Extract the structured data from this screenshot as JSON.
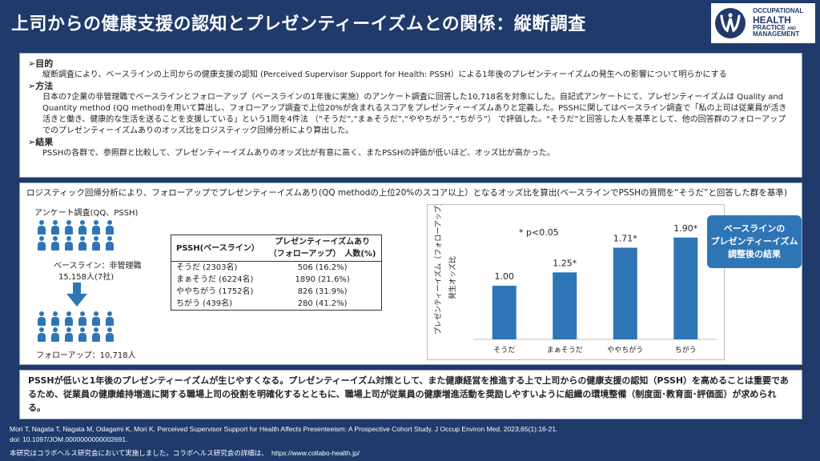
{
  "header": {
    "title": "上司からの健康支援の認知とプレゼンティーイズムとの関係：縦断調査",
    "logo_line1": "OCCUPATIONAL",
    "logo_line2": "HEALTH",
    "logo_line3": "PRACTICE",
    "logo_line4": "MANAGEMENT",
    "logo_and": "AND"
  },
  "summary": {
    "purpose_head": "➢目的",
    "purpose_body": "縦断調査により、ベースラインの上司からの健康支援の認知 (Perceived Supervisor Support for Health: PSSH）による1年後のプレゼンティーイズムの発生への影響について明らかにする",
    "method_head": "➢方法",
    "method_body": "日本の7企業の非管理職でベースラインとフォローアップ（ベースラインの1年後に実施）のアンケート調査に回答した10,718名を対象にした。自記式アンケートにて、プレゼンティーイズムは Quality and Quantity method (QQ method)を用いて算出し、フォローアップ調査で上位20%が含まれるスコアをプレゼンティーイズムありと定義した。PSSHに関してはベースライン調査で「私の上司は従業員が活き活きと働き、健康的な生活を送ることを支援している」という1問を4件法 （“そうだ”,“まぁそうだ”,“ややちがう”,“ちがう”） で評価した。“そうだ”と回答した人を基準として、他の回答群のフォローアップでのプレゼンティーイズムありのオッズ比をロジスティック回帰分析により算出した。",
    "result_head": "➢結果",
    "result_body": "PSSHの各群で、参照群と比較して、プレゼンティーイズムありのオッズ比が有意に高く、またPSSHの評価が低いほど、オッズ比が高かった。"
  },
  "analysis": {
    "title": "ロジスティック回帰分析により、フォローアップでプレゼンティーイズムあり(QQ methodの上位20%のスコア以上）となるオッズ比を算出(ベースラインでPSSHの質問を“そうだ”と回答した群を基準)",
    "survey_label": "アンケート調査(QQ、PSSH)",
    "baseline_label_1": "ベースライン：非管理職",
    "baseline_label_2": "15,158人(7社)",
    "followup_label": "フォローアップ：10,718人",
    "table": {
      "header_left": "PSSH(ベースライン）",
      "header_right_1": "プレゼンティーイズムあり",
      "header_right_2": "（フォローアップ）　人数(%)",
      "rows": [
        {
          "label": "そうだ (2303名)",
          "value": "506 (16.2%)"
        },
        {
          "label": "まぁそうだ (6224名)",
          "value": "1890 (21.6%)"
        },
        {
          "label": "ややちがう (1752名)",
          "value": "826 (31.9%)"
        },
        {
          "label": "ちがう (439名)",
          "value": "280 (41.2%)"
        }
      ]
    },
    "callout": [
      "ベースラインの",
      "プレゼンティーイズム",
      "調整後の結果"
    ]
  },
  "chart_data": {
    "type": "bar",
    "categories": [
      "そうだ",
      "まぁそうだ",
      "ややちがう",
      "ちがう"
    ],
    "values": [
      1.0,
      1.25,
      1.71,
      1.9
    ],
    "value_labels": [
      "1.00",
      "1.25*",
      "1.71*",
      "1.90*"
    ],
    "ylabel_1": "プレゼンティーイズム（フォローアップ）",
    "ylabel_2": "発生オッズ比",
    "annotation": "* p<0.05",
    "ylim": [
      0,
      2.3
    ],
    "bar_color": "#2e75b6",
    "grid": false
  },
  "conclusion": "PSSHが低いと1年後のプレゼンティーイズムが生じやすくなる。プレゼンティーイズム対策として、また健康経営を推進する上で上司からの健康支援の認知（PSSH）を高めることは重要であるため、従業員の健康維持増進に関する職場上司の役割を明確化するとともに、職場上司が従業員の健康増進活動を奨励しやすいように組織の環境整備（制度面･教育面･評価面）が求められる。",
  "footer": {
    "ref_1": "Mori T, Nagata T, Nagata M, Odagami K, Mori K. Perceived Supervisor Support for Health Affects Presenteeism: A Prospective Cohort Study. J Occup Environ Med. 2023;65(1):16-21.",
    "ref_2": "doi: 10.1097/JOM.0000000000002691.",
    "note": "本研究はコラボヘルス研究会において実施しました。コラボヘルス研究会の詳細は、　https://www.collabo-health.jp/"
  },
  "colors": {
    "header_bg": "#1f3a6b",
    "accent": "#2e75b6"
  }
}
